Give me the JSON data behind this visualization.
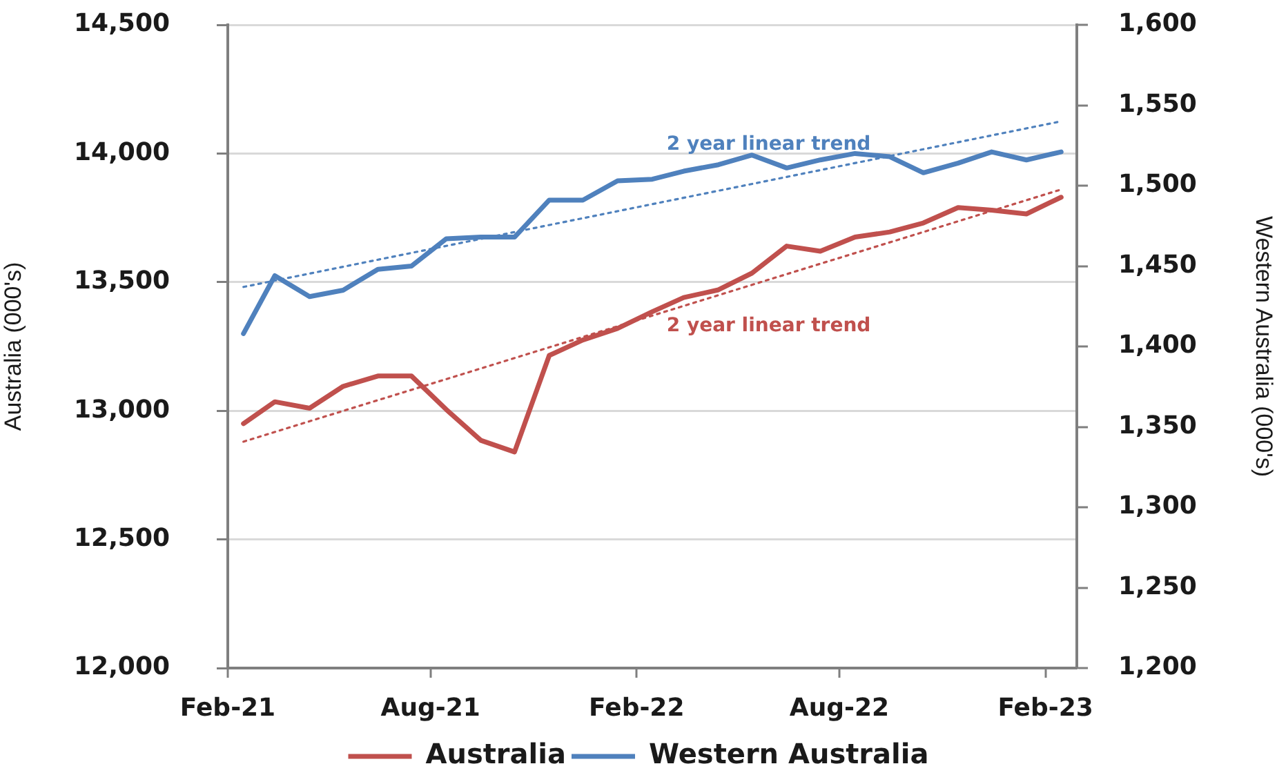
{
  "chart_data": {
    "type": "line",
    "x": [
      "2021-02-15",
      "2021-03-15",
      "2021-04-15",
      "2021-05-15",
      "2021-06-15",
      "2021-07-15",
      "2021-08-15",
      "2021-09-15",
      "2021-10-15",
      "2021-11-15",
      "2021-12-15",
      "2022-01-15",
      "2022-02-15",
      "2022-03-15",
      "2022-04-15",
      "2022-05-15",
      "2022-06-15",
      "2022-07-15",
      "2022-08-15",
      "2022-09-15",
      "2022-10-15",
      "2022-11-15",
      "2022-12-15",
      "2023-01-15",
      "2023-02-15"
    ],
    "ylabel": "Australia (000's)",
    "y2label": "Western Australia (000's)",
    "series": [
      {
        "name": "Australia",
        "color": "#c0504d",
        "values": [
          12950,
          13035,
          13010,
          13095,
          13135,
          13135,
          13005,
          12885,
          12840,
          13215,
          13275,
          13320,
          13385,
          13440,
          13470,
          13535,
          13640,
          13620,
          13675,
          13695,
          13730,
          13790,
          13780,
          13765,
          13830
        ]
      },
      {
        "name": "Western Australia",
        "color": "#4f81bd",
        "axis": "y2",
        "values": [
          1408,
          1444,
          1431,
          1435,
          1448,
          1450,
          1467,
          1468,
          1468,
          1491,
          1491,
          1503,
          1504,
          1509,
          1513,
          1519,
          1511,
          1516,
          1520,
          1518,
          1508,
          1514,
          1521,
          1516,
          1521
        ]
      },
      {
        "type": "line",
        "name": "2 year linear trend",
        "color": "#c0504d",
        "line_style": "dotted",
        "x": [
          "2021-02-15",
          "2023-02-15"
        ],
        "values": [
          12880,
          13860
        ]
      },
      {
        "type": "line",
        "name": "2 year linear trend",
        "color": "#4f81bd",
        "line_style": "dotted",
        "axis": "y2",
        "x": [
          "2021-02-15",
          "2023-02-15"
        ],
        "values": [
          1437,
          1540
        ]
      }
    ],
    "xlim": [
      "2021-02-01",
      "2023-03-01"
    ],
    "xticks": [
      {
        "value": "2021-02-01",
        "label": "Feb-21"
      },
      {
        "value": "2021-08-01",
        "label": "Aug-21"
      },
      {
        "value": "2022-02-01",
        "label": "Feb-22"
      },
      {
        "value": "2022-08-01",
        "label": "Aug-22"
      },
      {
        "value": "2023-02-01",
        "label": "Feb-23"
      }
    ],
    "ylim": [
      12000,
      14500
    ],
    "yticks": [
      {
        "value": 12000,
        "label": "12,000"
      },
      {
        "value": 12500,
        "label": "12,500"
      },
      {
        "value": 13000,
        "label": "13,000"
      },
      {
        "value": 13500,
        "label": "13,500"
      },
      {
        "value": 14000,
        "label": "14,000"
      },
      {
        "value": 14500,
        "label": "14,500"
      }
    ],
    "y2lim": [
      1200,
      1600
    ],
    "y2ticks": [
      {
        "value": 1200,
        "label": "1,200"
      },
      {
        "value": 1250,
        "label": "1,250"
      },
      {
        "value": 1300,
        "label": "1,300"
      },
      {
        "value": 1350,
        "label": "1,350"
      },
      {
        "value": 1400,
        "label": "1,400"
      },
      {
        "value": 1450,
        "label": "1,450"
      },
      {
        "value": 1500,
        "label": "1,500"
      },
      {
        "value": 1550,
        "label": "1,550"
      },
      {
        "value": 1600,
        "label": "1,600"
      }
    ],
    "grid": "y",
    "legend": "bottom",
    "marker": "none",
    "line_style": "solid"
  }
}
